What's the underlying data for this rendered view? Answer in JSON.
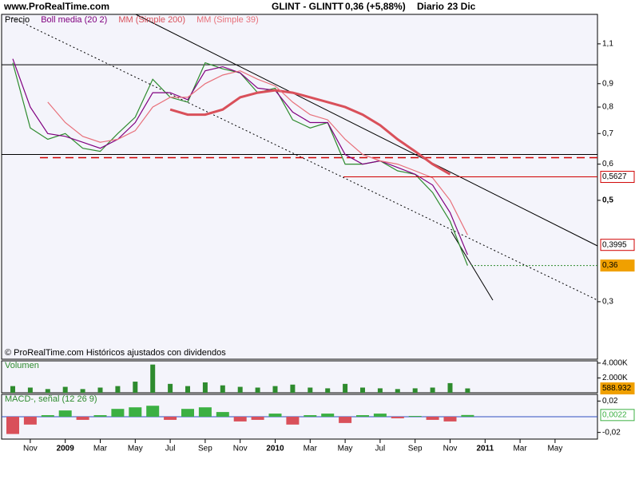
{
  "header": {
    "site": "www.ProRealTime.com",
    "symbol": "GLINT - GLINTT",
    "quote": "0,36 (+5,88%)",
    "period": "Diario",
    "date": "23 Dic"
  },
  "footer": "© ProRealTime.com Históricos ajustados con dividendos",
  "chart_data": [
    {
      "type": "line",
      "log_scale": true,
      "categories": [
        null,
        "Nov",
        null,
        "2009",
        null,
        "Mar",
        null,
        "May",
        null,
        "Jul",
        null,
        "Sep",
        null,
        "Nov",
        null,
        "2010",
        null,
        "Mar",
        null,
        "May",
        null,
        "Jul",
        null,
        "Sep",
        null,
        "Nov",
        null,
        "2011",
        null,
        "Mar",
        null,
        "May",
        null
      ],
      "series": [
        {
          "name": "Precio",
          "color": "#2e8b2e",
          "values": [
            1.0,
            0.72,
            0.68,
            0.7,
            0.65,
            0.64,
            0.7,
            0.76,
            0.92,
            0.84,
            0.82,
            1.0,
            0.97,
            0.95,
            0.86,
            0.88,
            0.75,
            0.72,
            0.74,
            0.6,
            0.6,
            0.61,
            0.58,
            0.57,
            0.52,
            0.45,
            0.36,
            null,
            null,
            null,
            null,
            null,
            null
          ]
        },
        {
          "name": "Boll media (20 2)",
          "color": "#800080",
          "values": [
            1.02,
            0.8,
            0.7,
            0.69,
            0.67,
            0.65,
            0.68,
            0.74,
            0.86,
            0.86,
            0.83,
            0.96,
            0.98,
            0.95,
            0.88,
            0.87,
            0.78,
            0.74,
            0.74,
            0.63,
            0.6,
            0.61,
            0.59,
            0.57,
            0.54,
            0.47,
            0.38,
            null,
            null,
            null,
            null,
            null,
            null
          ]
        },
        {
          "name": "MM (Simple 200)",
          "color": "#d9505a",
          "width": 3,
          "values": [
            null,
            null,
            null,
            null,
            null,
            null,
            null,
            null,
            null,
            0.79,
            0.77,
            0.77,
            0.79,
            0.84,
            0.86,
            0.87,
            0.86,
            0.84,
            0.82,
            0.8,
            0.77,
            0.73,
            0.68,
            0.64,
            0.6,
            0.57,
            null,
            null,
            null,
            null,
            null,
            null,
            null
          ]
        },
        {
          "name": "MM (Simple 39)",
          "color": "#e8707a",
          "values": [
            null,
            null,
            0.82,
            0.74,
            0.69,
            0.67,
            0.68,
            0.71,
            0.8,
            0.84,
            0.84,
            0.9,
            0.94,
            0.96,
            0.92,
            0.89,
            0.82,
            0.77,
            0.75,
            0.68,
            0.63,
            0.61,
            0.6,
            0.58,
            0.56,
            0.5,
            0.42,
            null,
            null,
            null,
            null,
            null,
            null
          ]
        }
      ],
      "ylim": [
        0.2245,
        1.276
      ],
      "yticks": [
        {
          "value": 1.1,
          "label": "1,1"
        },
        {
          "value": 0.9,
          "label": "0,9"
        },
        {
          "value": 0.8,
          "label": "0,8"
        },
        {
          "value": 0.7,
          "label": "0,7"
        },
        {
          "value": 0.6,
          "label": "0,6"
        },
        {
          "value": 0.5,
          "label": "0,5"
        },
        {
          "value": 0.3,
          "label": "0,3"
        }
      ],
      "hlines": [
        {
          "value": 0.99,
          "color": "#000000"
        },
        {
          "value": 0.63,
          "color": "#000000"
        },
        {
          "value": 0.62,
          "color": "#d00000",
          "dashed": true
        }
      ],
      "annotations": [
        {
          "value": 0.5627,
          "label": "0,5627",
          "color": "#d00000"
        },
        {
          "value": 0.3995,
          "label": "0,3995",
          "color": "#d00000"
        },
        {
          "value": 0.36,
          "label": "0,36",
          "color": "#f0a000"
        }
      ]
    },
    {
      "type": "bar",
      "name": "Volumen",
      "color": "#2e8b2e",
      "values": [
        900000,
        700000,
        500000,
        800000,
        500000,
        700000,
        900000,
        1500000,
        3800000,
        1200000,
        900000,
        1400000,
        1000000,
        800000,
        700000,
        900000,
        1100000,
        700000,
        600000,
        1200000,
        700000,
        600000,
        500000,
        600000,
        700000,
        1300000,
        588932,
        null,
        null,
        null,
        null,
        null,
        null
      ],
      "ylim": [
        0,
        4300000
      ],
      "yticks": [
        {
          "value": 4000000,
          "label": "4.000K"
        },
        {
          "value": 2000000,
          "label": "2.000K"
        }
      ],
      "annotations": [
        {
          "value": 588932,
          "label": "588.932",
          "color": "#f0a000"
        }
      ]
    },
    {
      "type": "histogram-bar",
      "name": "MACD-, señal (12 26 9)",
      "pos_color": "#3cb043",
      "neg_color": "#d9505a",
      "values": [
        -0.022,
        -0.01,
        0.002,
        0.008,
        -0.004,
        0.002,
        0.01,
        0.012,
        0.014,
        -0.004,
        0.01,
        0.012,
        0.006,
        -0.006,
        -0.004,
        0.004,
        -0.01,
        0.002,
        0.004,
        -0.008,
        0.002,
        0.004,
        -0.002,
        0.001,
        -0.004,
        -0.006,
        0.0022,
        null,
        null,
        null,
        null,
        null,
        null
      ],
      "ylim": [
        -0.0285,
        0.0285
      ],
      "yticks": [
        {
          "value": 0.02,
          "label": "0,02"
        },
        {
          "value": -0.02,
          "label": "-0,02"
        }
      ],
      "annotations": [
        {
          "value": 0.0022,
          "label": "0,0022",
          "color": "#3cb043"
        }
      ]
    }
  ]
}
